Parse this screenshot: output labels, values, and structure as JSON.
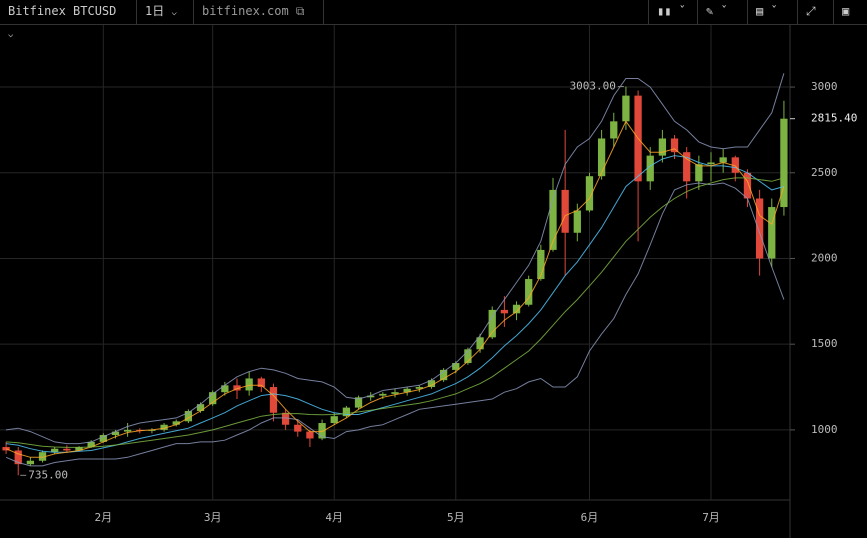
{
  "toolbar": {
    "symbol": "Bitfinex BTCUSD",
    "interval": "1日",
    "site": "bitfinex.com"
  },
  "chart_data": {
    "type": "candlestick",
    "categories": [
      null,
      null,
      null,
      null,
      null,
      null,
      null,
      null,
      "2月",
      null,
      null,
      null,
      null,
      null,
      null,
      null,
      null,
      "3月",
      null,
      null,
      null,
      null,
      null,
      null,
      null,
      null,
      null,
      "4月",
      null,
      null,
      null,
      null,
      null,
      null,
      null,
      null,
      null,
      "5月",
      null,
      null,
      null,
      null,
      null,
      null,
      null,
      null,
      null,
      null,
      "6月",
      null,
      null,
      null,
      null,
      null,
      null,
      null,
      null,
      null,
      "7月",
      null,
      null,
      null,
      null,
      null,
      null
    ],
    "ohlc": [
      [
        900,
        930,
        860,
        880
      ],
      [
        880,
        900,
        735,
        800
      ],
      [
        800,
        840,
        790,
        820
      ],
      [
        820,
        880,
        810,
        870
      ],
      [
        870,
        900,
        860,
        890
      ],
      [
        890,
        910,
        870,
        880
      ],
      [
        880,
        905,
        875,
        900
      ],
      [
        900,
        940,
        895,
        930
      ],
      [
        930,
        980,
        925,
        970
      ],
      [
        970,
        1000,
        950,
        990
      ],
      [
        990,
        1040,
        960,
        1000
      ],
      [
        1000,
        1010,
        980,
        995
      ],
      [
        995,
        1010,
        980,
        1000
      ],
      [
        1000,
        1040,
        990,
        1030
      ],
      [
        1030,
        1060,
        1020,
        1050
      ],
      [
        1050,
        1120,
        1040,
        1110
      ],
      [
        1110,
        1160,
        1100,
        1150
      ],
      [
        1150,
        1230,
        1140,
        1220
      ],
      [
        1220,
        1280,
        1200,
        1260
      ],
      [
        1260,
        1300,
        1180,
        1230
      ],
      [
        1230,
        1340,
        1200,
        1300
      ],
      [
        1300,
        1310,
        1220,
        1250
      ],
      [
        1250,
        1270,
        1050,
        1100
      ],
      [
        1100,
        1120,
        1000,
        1030
      ],
      [
        1030,
        1060,
        960,
        990
      ],
      [
        990,
        1000,
        900,
        950
      ],
      [
        950,
        1060,
        940,
        1040
      ],
      [
        1040,
        1100,
        1030,
        1080
      ],
      [
        1080,
        1140,
        1070,
        1130
      ],
      [
        1130,
        1200,
        1120,
        1190
      ],
      [
        1190,
        1220,
        1170,
        1200
      ],
      [
        1200,
        1220,
        1180,
        1210
      ],
      [
        1210,
        1240,
        1190,
        1220
      ],
      [
        1220,
        1250,
        1200,
        1240
      ],
      [
        1240,
        1260,
        1220,
        1250
      ],
      [
        1250,
        1300,
        1240,
        1290
      ],
      [
        1290,
        1360,
        1280,
        1350
      ],
      [
        1350,
        1400,
        1330,
        1390
      ],
      [
        1390,
        1480,
        1380,
        1470
      ],
      [
        1470,
        1560,
        1450,
        1540
      ],
      [
        1540,
        1720,
        1530,
        1700
      ],
      [
        1700,
        1780,
        1600,
        1680
      ],
      [
        1680,
        1750,
        1640,
        1730
      ],
      [
        1730,
        1900,
        1720,
        1880
      ],
      [
        1880,
        2080,
        1870,
        2050
      ],
      [
        2050,
        2470,
        2040,
        2400
      ],
      [
        2400,
        2750,
        1900,
        2150
      ],
      [
        2150,
        2320,
        2100,
        2280
      ],
      [
        2280,
        2500,
        2270,
        2480
      ],
      [
        2480,
        2750,
        2460,
        2700
      ],
      [
        2700,
        2850,
        2650,
        2800
      ],
      [
        2800,
        3003,
        2750,
        2950
      ],
      [
        2950,
        2980,
        2100,
        2450
      ],
      [
        2450,
        2650,
        2400,
        2600
      ],
      [
        2600,
        2750,
        2560,
        2700
      ],
      [
        2700,
        2720,
        2580,
        2620
      ],
      [
        2620,
        2650,
        2350,
        2450
      ],
      [
        2450,
        2600,
        2400,
        2550
      ],
      [
        2550,
        2620,
        2450,
        2560
      ],
      [
        2560,
        2640,
        2500,
        2590
      ],
      [
        2590,
        2600,
        2450,
        2500
      ],
      [
        2500,
        2520,
        2300,
        2350
      ],
      [
        2350,
        2400,
        1900,
        2000
      ],
      [
        2000,
        2350,
        1950,
        2300
      ],
      [
        2300,
        2920,
        2250,
        2815.4
      ]
    ],
    "up_color": "#7cb342",
    "down_color": "#e0483a",
    "lines": [
      {
        "color": "#8a95b8",
        "values": [
          1000,
          1010,
          990,
          960,
          930,
          920,
          920,
          930,
          960,
          990,
          1020,
          1040,
          1050,
          1060,
          1070,
          1100,
          1150,
          1210,
          1260,
          1310,
          1340,
          1360,
          1350,
          1330,
          1300,
          1290,
          1280,
          1250,
          1190,
          1180,
          1200,
          1230,
          1240,
          1250,
          1260,
          1290,
          1340,
          1390,
          1460,
          1550,
          1660,
          1760,
          1860,
          1960,
          2100,
          2350,
          2550,
          2650,
          2700,
          2800,
          2950,
          3050,
          3050,
          3000,
          2900,
          2800,
          2750,
          2680,
          2650,
          2640,
          2650,
          2650,
          2750,
          2850,
          3080
        ]
      },
      {
        "color": "#8a95b8",
        "values": [
          840,
          810,
          790,
          790,
          810,
          820,
          830,
          830,
          830,
          830,
          840,
          860,
          880,
          900,
          920,
          920,
          930,
          930,
          940,
          970,
          1000,
          1040,
          1070,
          1070,
          1060,
          1010,
          960,
          950,
          990,
          1000,
          1020,
          1030,
          1060,
          1090,
          1120,
          1130,
          1140,
          1150,
          1160,
          1170,
          1180,
          1220,
          1240,
          1280,
          1300,
          1250,
          1250,
          1310,
          1460,
          1560,
          1650,
          1790,
          1910,
          2080,
          2260,
          2400,
          2430,
          2440,
          2430,
          2440,
          2410,
          2350,
          2150,
          1950,
          1760
        ]
      },
      {
        "color": "#4fc3f7",
        "values": [
          920,
          910,
          890,
          875,
          870,
          870,
          875,
          880,
          895,
          910,
          930,
          950,
          965,
          980,
          995,
          1010,
          1040,
          1070,
          1100,
          1140,
          1170,
          1200,
          1210,
          1200,
          1180,
          1150,
          1120,
          1100,
          1090,
          1090,
          1110,
          1130,
          1150,
          1170,
          1190,
          1210,
          1240,
          1270,
          1310,
          1360,
          1420,
          1490,
          1550,
          1620,
          1700,
          1800,
          1900,
          1980,
          2080,
          2180,
          2300,
          2420,
          2480,
          2540,
          2580,
          2600,
          2590,
          2560,
          2540,
          2540,
          2530,
          2500,
          2450,
          2400,
          2420
        ]
      },
      {
        "color": "#ffa726",
        "values": [
          890,
          860,
          840,
          840,
          860,
          870,
          880,
          900,
          930,
          960,
          985,
          995,
          1000,
          1010,
          1030,
          1070,
          1110,
          1160,
          1210,
          1240,
          1260,
          1260,
          1200,
          1120,
          1050,
          990,
          990,
          1030,
          1070,
          1120,
          1160,
          1190,
          1205,
          1220,
          1235,
          1260,
          1300,
          1340,
          1400,
          1470,
          1570,
          1640,
          1690,
          1770,
          1900,
          2100,
          2250,
          2280,
          2350,
          2500,
          2650,
          2800,
          2700,
          2620,
          2620,
          2640,
          2580,
          2540,
          2540,
          2560,
          2540,
          2450,
          2250,
          2200,
          2420
        ]
      },
      {
        "color": "#7cb342",
        "values": [
          930,
          925,
          915,
          905,
          900,
          898,
          898,
          900,
          905,
          912,
          920,
          930,
          940,
          950,
          960,
          970,
          985,
          1000,
          1020,
          1040,
          1060,
          1080,
          1090,
          1095,
          1095,
          1090,
          1088,
          1090,
          1095,
          1105,
          1115,
          1125,
          1135,
          1145,
          1155,
          1170,
          1190,
          1210,
          1240,
          1270,
          1310,
          1360,
          1410,
          1460,
          1530,
          1610,
          1690,
          1760,
          1840,
          1920,
          2010,
          2100,
          2170,
          2240,
          2300,
          2350,
          2390,
          2420,
          2440,
          2460,
          2470,
          2470,
          2460,
          2450,
          2470
        ]
      }
    ],
    "ylim": [
      591,
      3362
    ],
    "yticks": [
      1000,
      1500,
      2000,
      2500,
      3000
    ],
    "grid": true,
    "high": {
      "value": 3003,
      "label": "3003.00"
    },
    "low": {
      "value": 735,
      "label": "735.00"
    },
    "last": {
      "value": 2815.4,
      "label": "2815.40"
    }
  }
}
